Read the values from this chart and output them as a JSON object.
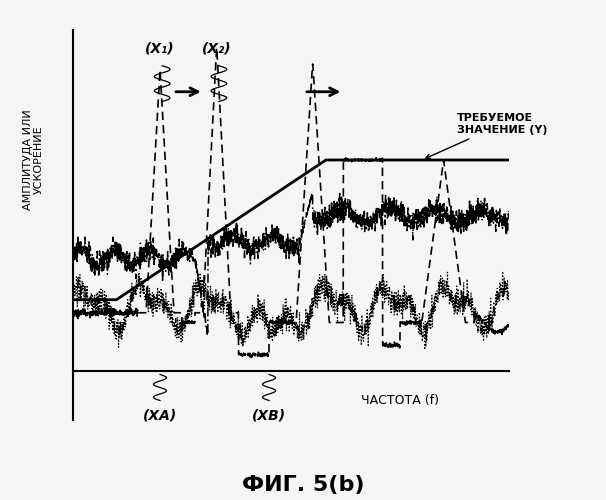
{
  "title": "ФИГ. 5(b)",
  "xlabel": "ЧАСТОТА (f)",
  "ylabel": "АМПЛИТУДА ИЛИ\nУСКОРЕНИЕ",
  "annotation_y": "ТРЕБУЕМОЕ\nЗНАЧЕНИЕ (Y)",
  "label_x1": "(X₁)",
  "label_x2": "(X₂)",
  "label_xa": "(XA)",
  "label_xb": "(XB)",
  "bg_color": "#f5f5f5",
  "line_color": "#000000",
  "xlim": [
    0,
    10
  ],
  "ylim": [
    -1.5,
    10.5
  ]
}
